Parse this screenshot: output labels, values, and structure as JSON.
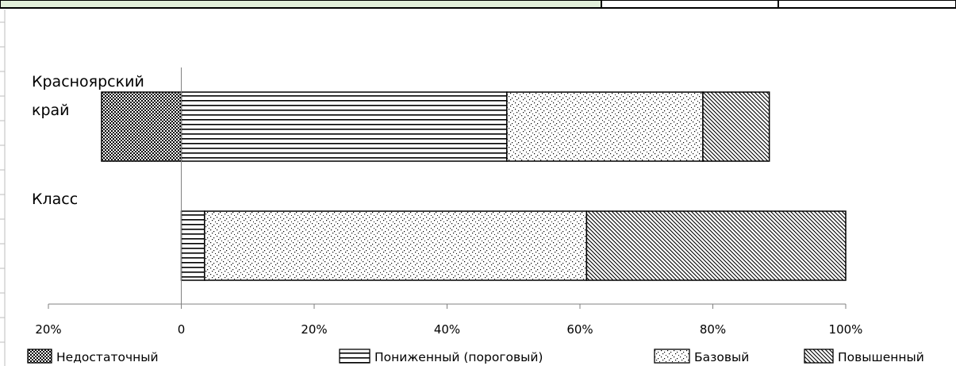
{
  "chart_data": {
    "type": "bar",
    "orientation": "horizontal",
    "stacked": true,
    "categories": [
      "Красноярский край",
      "Класс"
    ],
    "category_lines": [
      [
        "Красноярский",
        "край"
      ],
      [
        "Класс"
      ]
    ],
    "series": [
      {
        "name": "Недостаточный",
        "pattern": "dense-dots",
        "values": [
          -12,
          0
        ]
      },
      {
        "name": "Пониженный (пороговый)",
        "pattern": "horizontal-lines",
        "values": [
          49,
          3.5
        ]
      },
      {
        "name": "Базовый",
        "pattern": "sparse-dots",
        "values": [
          29.5,
          57.5
        ]
      },
      {
        "name": "Повышенный",
        "pattern": "diagonal-lines",
        "values": [
          10,
          39
        ]
      }
    ],
    "xlim": [
      -20,
      100
    ],
    "xticks": [
      {
        "value": -20,
        "label": "20%"
      },
      {
        "value": 0,
        "label": "0"
      },
      {
        "value": 20,
        "label": "20%"
      },
      {
        "value": 40,
        "label": "40%"
      },
      {
        "value": 60,
        "label": "60%"
      },
      {
        "value": 80,
        "label": "80%"
      },
      {
        "value": 100,
        "label": "100%"
      }
    ],
    "legend_position": "bottom",
    "grid": false
  },
  "colors": {
    "header_fill": "#e2efda",
    "border": "#000000",
    "axis": "#808080"
  }
}
